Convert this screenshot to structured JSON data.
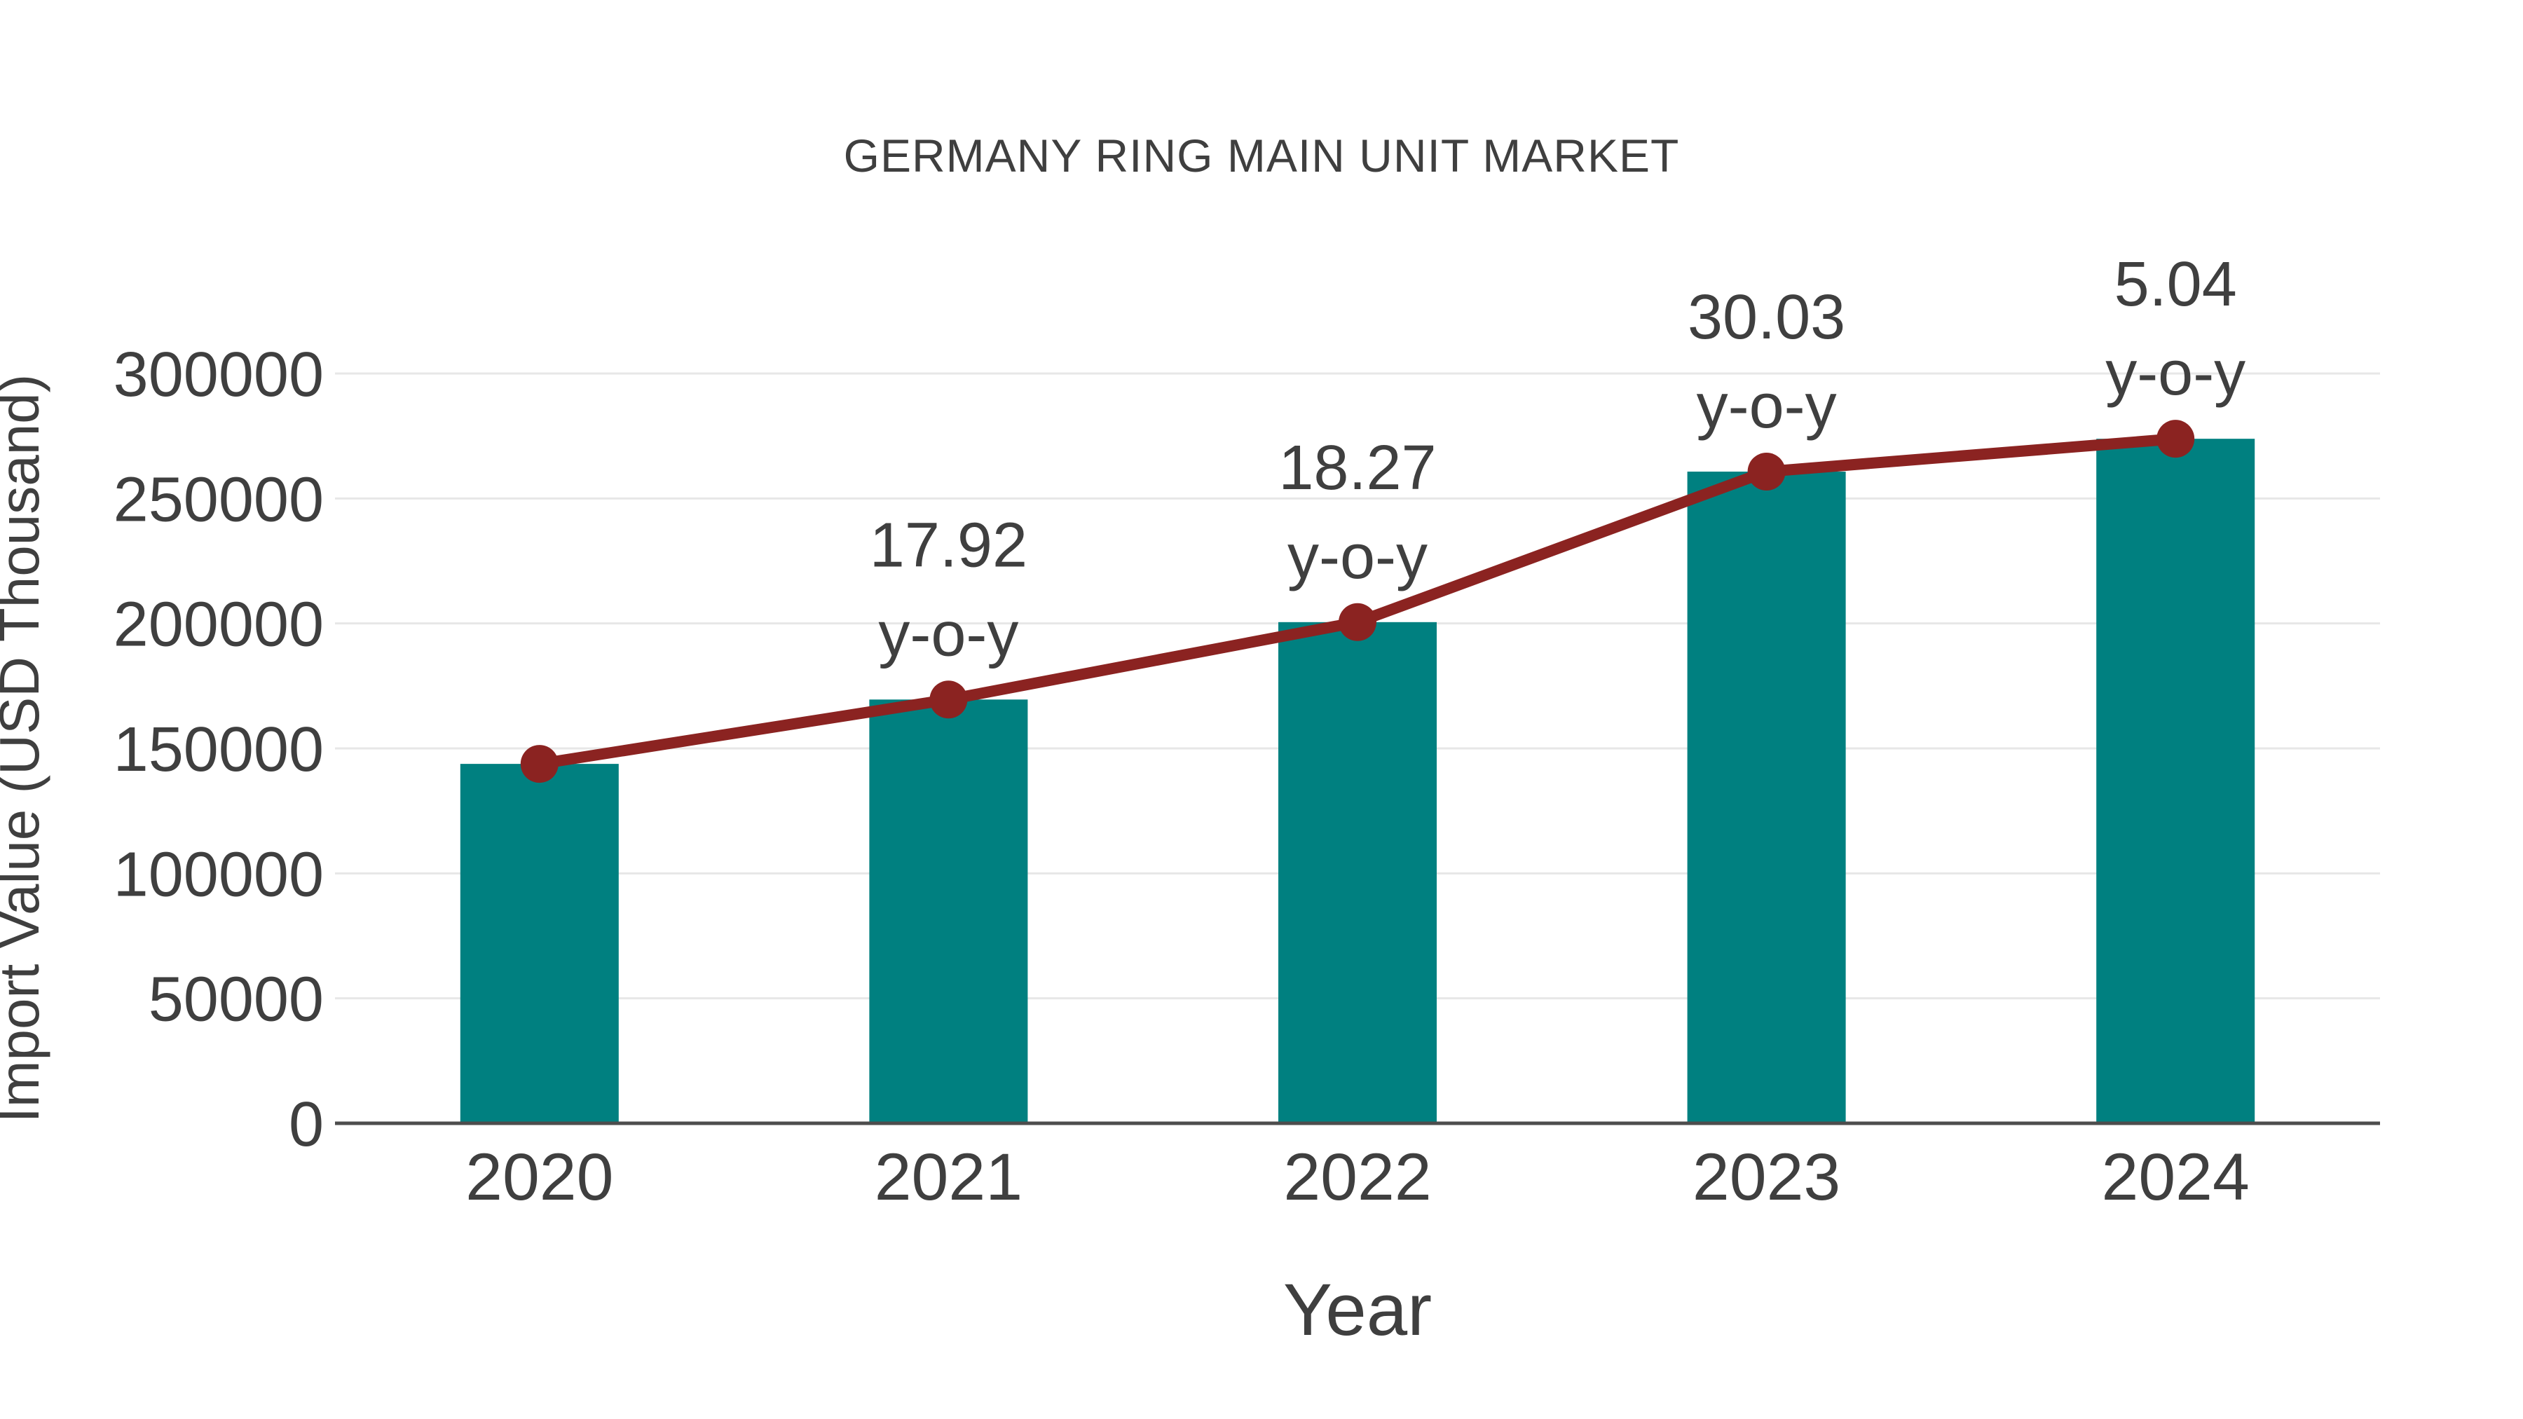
{
  "chart_data": {
    "type": "bar",
    "title": "GERMANY RING MAIN UNIT MARKET",
    "xlabel": "Year",
    "ylabel": "Import Value (USD Thousand)",
    "categories": [
      "2020",
      "2021",
      "2022",
      "2023",
      "2024"
    ],
    "series": [
      {
        "name": "import-value-bars",
        "type": "bar",
        "color": "#008080",
        "values": [
          143800,
          169550,
          200520,
          260740,
          273880
        ]
      },
      {
        "name": "yoy-trend-line",
        "type": "line",
        "color": "#8B2321",
        "values": [
          143800,
          169550,
          200520,
          260740,
          273880
        ]
      }
    ],
    "annotations": [
      {
        "category": "2021",
        "line1": "17.92",
        "line2": "y-o-y"
      },
      {
        "category": "2022",
        "line1": "18.27",
        "line2": "y-o-y"
      },
      {
        "category": "2023",
        "line1": "30.03",
        "line2": "y-o-y"
      },
      {
        "category": "2024",
        "line1": "5.04",
        "line2": "y-o-y"
      }
    ],
    "yticks": [
      0,
      50000,
      100000,
      150000,
      200000,
      250000,
      300000
    ],
    "ylim": [
      0,
      300000
    ],
    "grid": true,
    "legend": false,
    "colors": {
      "bar": "#008080",
      "line": "#8B2321",
      "gridline": "#e7e7e7",
      "axis_line": "#4d4d4d",
      "text": "#3f3f3f"
    }
  }
}
